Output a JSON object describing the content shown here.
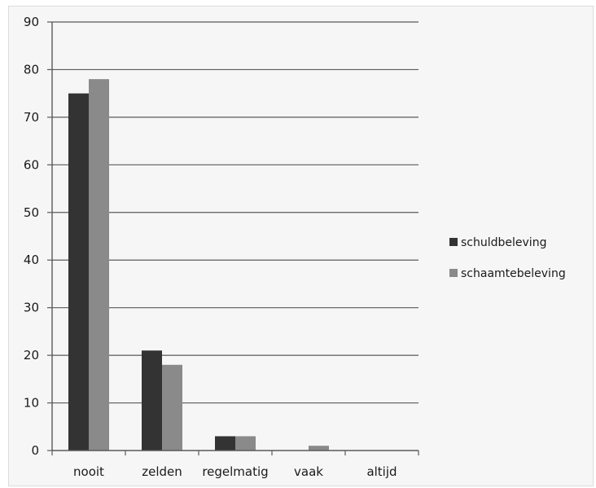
{
  "chart_data": {
    "type": "bar",
    "categories": [
      "nooit",
      "zelden",
      "regelmatig",
      "vaak",
      "altijd"
    ],
    "series": [
      {
        "name": "schuldbeleving",
        "values": [
          75,
          21,
          3,
          0,
          0
        ],
        "color": "#333333"
      },
      {
        "name": "schaamtebeleving",
        "values": [
          78,
          18,
          3,
          1,
          0
        ],
        "color": "#8a8a8a"
      }
    ],
    "yticks": [
      "0",
      "10",
      "20",
      "30",
      "40",
      "50",
      "60",
      "70",
      "80",
      "90"
    ],
    "ylim": [
      0,
      90
    ],
    "grid": true,
    "legend_position": "right"
  }
}
